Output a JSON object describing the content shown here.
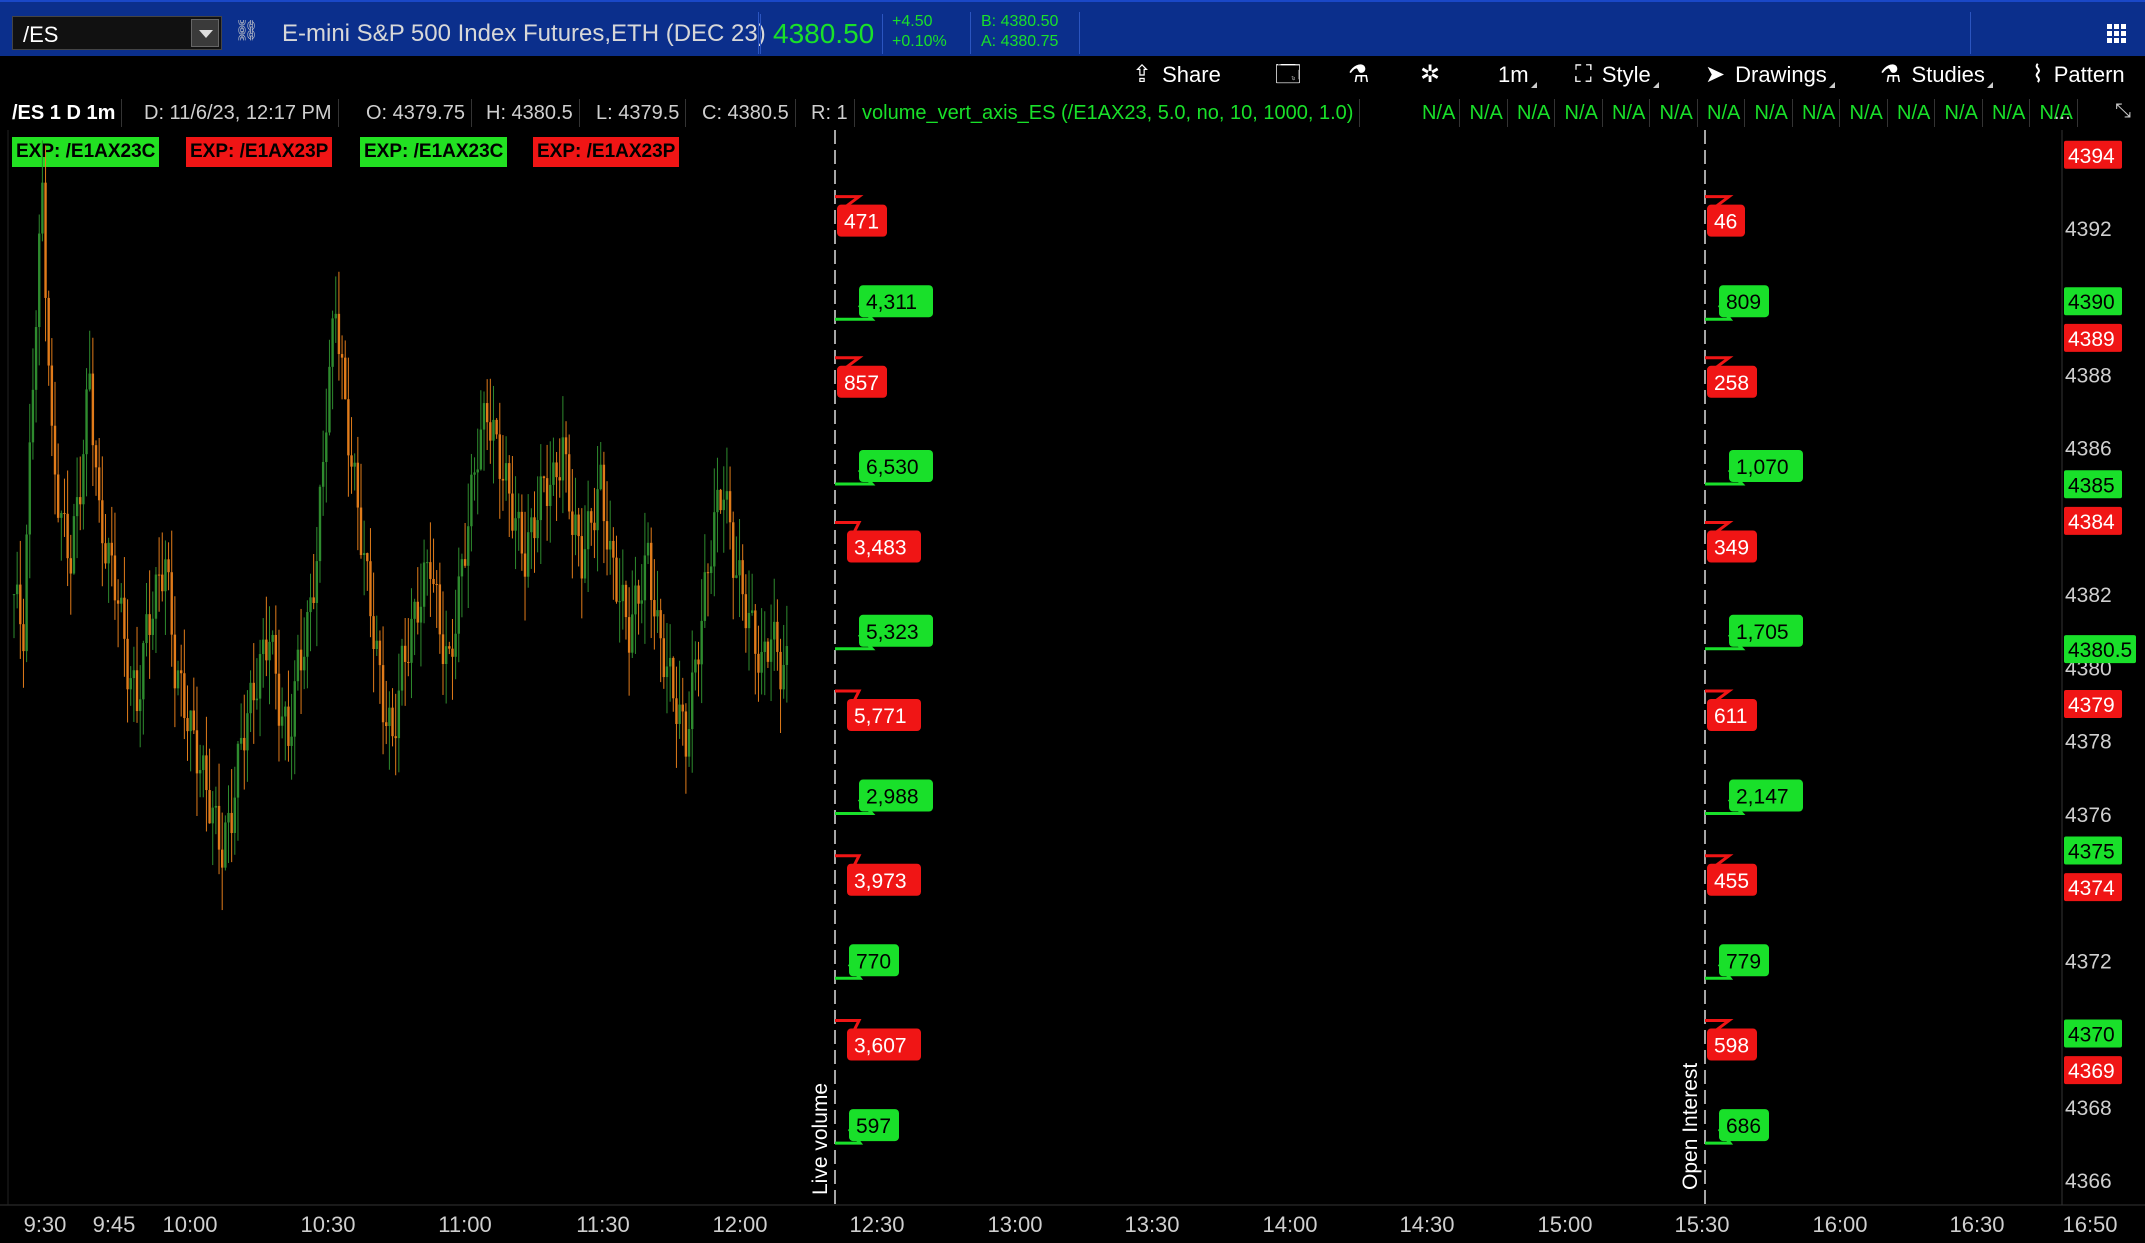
{
  "header": {
    "symbol": "/ES",
    "instrument": "E-mini S&P 500 Index Futures,ETH (DEC 23)",
    "last_price": "4380.50",
    "change": "+4.50",
    "change_pct": "+0.10%",
    "bid": "B: 4380.50",
    "ask": "A: 4380.75"
  },
  "toolbar": {
    "share": "Share",
    "timeframe": "1m",
    "style": "Style",
    "drawings": "Drawings",
    "studies": "Studies",
    "pattern": "Pattern"
  },
  "studyline": {
    "title": "/ES 1 D 1m",
    "date": "D: 11/6/23, 12:17 PM",
    "open": "O: 4379.75",
    "high": "H: 4380.5",
    "low": "L: 4379.5",
    "close": "C: 4380.5",
    "range": "R: 1",
    "study": "volume_vert_axis_ES (/E1AX23, 5.0, no, 10, 1000, 1.0)",
    "na": [
      "N/A",
      "N/A",
      "N/A",
      "N/A",
      "N/A",
      "N/A",
      "N/A",
      "N/A",
      "N/A",
      "N/A",
      "N/A",
      "N/A",
      "N/A",
      "N/A"
    ],
    "ellipsis": "..."
  },
  "exp_tags": [
    "EXP: /E1AX23C",
    "EXP: /E1AX23P",
    "EXP: /E1AX23C",
    "EXP: /E1AX23P"
  ],
  "colors": {
    "green": "#19e02a",
    "red": "#f01515",
    "candle_up": "#2e8b2e",
    "candle_down": "#e07b1a",
    "header_blue": "#0b2f8c"
  },
  "chart_data": {
    "type": "candlestick",
    "timeframe": "1m",
    "ylim": [
      4365,
      4395
    ],
    "x_ticks": [
      "9:30",
      "9:45",
      "10:00",
      "10:30",
      "11:00",
      "11:30",
      "12:00",
      "12:30",
      "13:00",
      "13:30",
      "14:00",
      "14:30",
      "15:00",
      "15:30",
      "16:00",
      "16:30",
      "16:50"
    ],
    "y_ticks": [
      4392,
      4388,
      4386,
      4382,
      4380,
      4378,
      4376,
      4372,
      4368,
      4366
    ],
    "price_labels": [
      {
        "price": 4394,
        "text": "4394",
        "color": "red"
      },
      {
        "price": 4390,
        "text": "4390",
        "color": "green"
      },
      {
        "price": 4389,
        "text": "4389",
        "color": "red"
      },
      {
        "price": 4385,
        "text": "4385",
        "color": "green"
      },
      {
        "price": 4384,
        "text": "4384",
        "color": "red"
      },
      {
        "price": 4380.5,
        "text": "4380.5",
        "color": "green"
      },
      {
        "price": 4379,
        "text": "4379",
        "color": "red"
      },
      {
        "price": 4375,
        "text": "4375",
        "color": "green"
      },
      {
        "price": 4374,
        "text": "4374",
        "color": "red"
      },
      {
        "price": 4370,
        "text": "4370",
        "color": "green"
      },
      {
        "price": 4369,
        "text": "4369",
        "color": "red"
      }
    ],
    "close_series": [
      4382,
      4381,
      4388,
      4393,
      4386,
      4384,
      4383,
      4385,
      4388,
      4384,
      4383,
      4382,
      4380,
      4379,
      4381,
      4382,
      4383,
      4380,
      4379,
      4378,
      4377,
      4376,
      4375,
      4376,
      4378,
      4379,
      4380,
      4381,
      4379,
      4378,
      4380,
      4381,
      4383,
      4387,
      4390,
      4387,
      4385,
      4383,
      4381,
      4379,
      4378,
      4380,
      4381,
      4382,
      4383,
      4381,
      4380,
      4382,
      4384,
      4386,
      4387,
      4386,
      4385,
      4384,
      4383,
      4384,
      4385,
      4385,
      4386,
      4384,
      4383,
      4384,
      4385,
      4383,
      4382,
      4381,
      4382,
      4383,
      4381,
      4380,
      4379,
      4378,
      4380,
      4382,
      4384,
      4385,
      4383,
      4382,
      4381,
      4380,
      4381,
      4380
    ],
    "annotations": [
      {
        "axis": "Live volume",
        "items": [
          {
            "price": 4392.2,
            "color": "red",
            "value": "471"
          },
          {
            "price": 4390,
            "color": "green",
            "value": "4,311"
          },
          {
            "price": 4387.8,
            "color": "red",
            "value": "857"
          },
          {
            "price": 4385.5,
            "color": "green",
            "value": "6,530"
          },
          {
            "price": 4383.3,
            "color": "red",
            "value": "3,483"
          },
          {
            "price": 4381,
            "color": "green",
            "value": "5,323"
          },
          {
            "price": 4378.7,
            "color": "red",
            "value": "5,771"
          },
          {
            "price": 4376.5,
            "color": "green",
            "value": "2,988"
          },
          {
            "price": 4374.2,
            "color": "red",
            "value": "3,973"
          },
          {
            "price": 4372,
            "color": "green",
            "value": "770"
          },
          {
            "price": 4369.7,
            "color": "red",
            "value": "3,607"
          },
          {
            "price": 4367.5,
            "color": "green",
            "value": "597"
          }
        ]
      },
      {
        "axis": "Open Interest",
        "items": [
          {
            "price": 4392.2,
            "color": "red",
            "value": "46"
          },
          {
            "price": 4390,
            "color": "green",
            "value": "809"
          },
          {
            "price": 4387.8,
            "color": "red",
            "value": "258"
          },
          {
            "price": 4385.5,
            "color": "green",
            "value": "1,070"
          },
          {
            "price": 4383.3,
            "color": "red",
            "value": "349"
          },
          {
            "price": 4381,
            "color": "green",
            "value": "1,705"
          },
          {
            "price": 4378.7,
            "color": "red",
            "value": "611"
          },
          {
            "price": 4376.5,
            "color": "green",
            "value": "2,147"
          },
          {
            "price": 4374.2,
            "color": "red",
            "value": "455"
          },
          {
            "price": 4372,
            "color": "green",
            "value": "779"
          },
          {
            "price": 4369.7,
            "color": "red",
            "value": "598"
          },
          {
            "price": 4367.5,
            "color": "green",
            "value": "686"
          }
        ]
      }
    ]
  }
}
